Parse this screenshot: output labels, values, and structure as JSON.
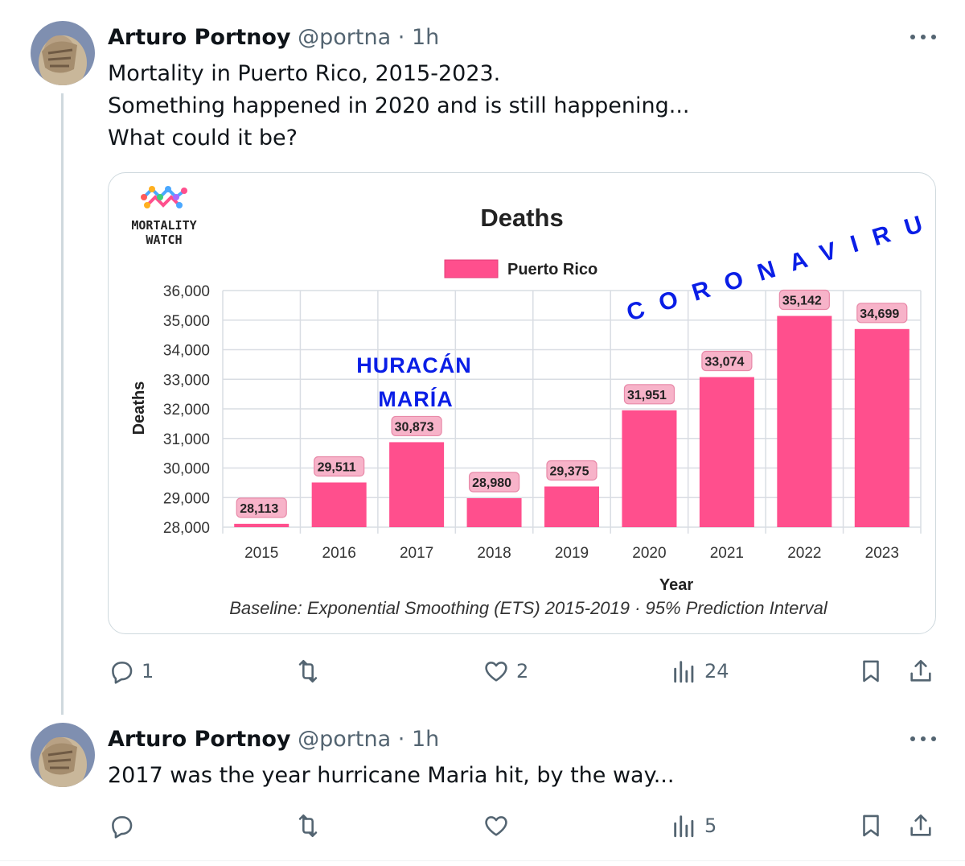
{
  "tweets": [
    {
      "author_name": "Arturo Portnoy",
      "handle": "@portna",
      "separator": "·",
      "time": "1h",
      "text_lines": [
        "Mortality in Puerto Rico, 2015-2023.",
        "Something happened in 2020 and is still happening...",
        "What could it be?"
      ],
      "actions": {
        "replies": "1",
        "reposts": "",
        "likes": "2",
        "views": "24"
      }
    },
    {
      "author_name": "Arturo Portnoy",
      "handle": "@portna",
      "separator": "·",
      "time": "1h",
      "text_lines": [
        "2017 was the year hurricane Maria hit, by the way..."
      ],
      "actions": {
        "replies": "",
        "reposts": "",
        "likes": "",
        "views": "5"
      }
    }
  ],
  "card": {
    "logo_text_line1": "MORTALITY",
    "logo_text_line2": "WATCH",
    "annotation_huracan_line1": "HURACÁN",
    "annotation_huracan_line2": "MARÍA",
    "annotation_coronavirus": "CORONAVIRUS",
    "annotation_color": "#0a1ee6",
    "caption": "Baseline: Exponential Smoothing (ETS) 2015-2019 · 95% Prediction Interval"
  },
  "chart_data": {
    "type": "bar",
    "title": "Deaths",
    "xlabel": "Year",
    "ylabel": "Deaths",
    "legend": "top-center",
    "grid": true,
    "categories": [
      "2015",
      "2016",
      "2017",
      "2018",
      "2019",
      "2020",
      "2021",
      "2022",
      "2023"
    ],
    "series": [
      {
        "name": "Puerto Rico",
        "color": "#ff4f8d",
        "values": [
          28113,
          29511,
          30873,
          28980,
          29375,
          31951,
          33074,
          35142,
          34699
        ],
        "labels": [
          "28,113",
          "29,511",
          "30,873",
          "28,980",
          "29,375",
          "31,951",
          "33,074",
          "35,142",
          "34,699"
        ]
      }
    ],
    "ylim": [
      28000,
      36000
    ],
    "yticks": [
      "28,000",
      "29,000",
      "30,000",
      "31,000",
      "32,000",
      "33,000",
      "34,000",
      "35,000",
      "36,000"
    ]
  }
}
